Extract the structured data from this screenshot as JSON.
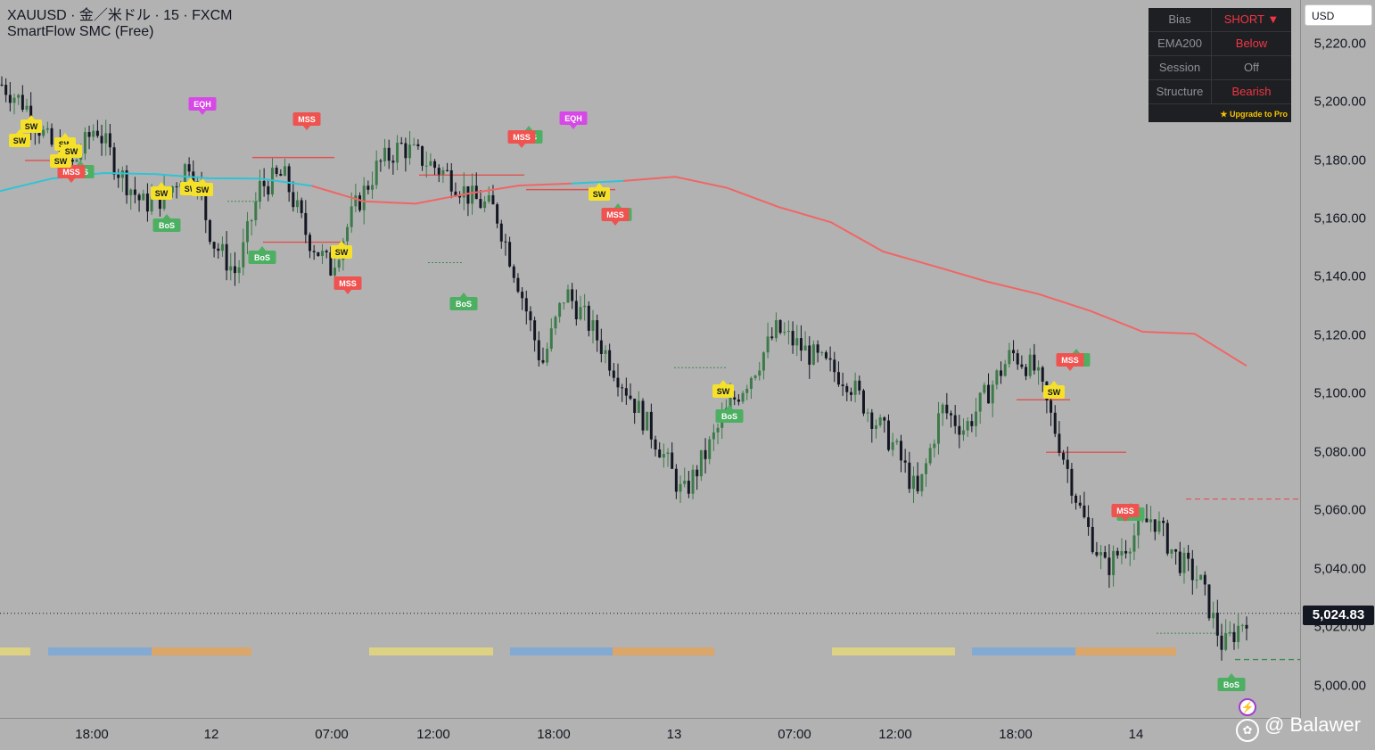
{
  "legend": {
    "symbol_line": "XAUUSD · 金／米ドル · 15 · FXCM",
    "indicator_line": "SmartFlow SMC (Free)"
  },
  "price_axis": {
    "currency": "USD",
    "ticks": [
      "5,220.00",
      "5,200.00",
      "5,180.00",
      "5,160.00",
      "5,140.00",
      "5,120.00",
      "5,100.00",
      "5,080.00",
      "5,060.00",
      "5,040.00",
      "5,020.00",
      "5,000.00"
    ],
    "last_price": "5,024.83"
  },
  "time_axis": {
    "ticks": [
      "18:00",
      "12",
      "07:00",
      "12:00",
      "18:00",
      "13",
      "07:00",
      "12:00",
      "18:00",
      "14"
    ]
  },
  "dashboard": {
    "rows": [
      {
        "key": "Bias",
        "value": "SHORT ▼",
        "color": "#f23645"
      },
      {
        "key": "EMA200",
        "value": "Below",
        "color": "#f23645"
      },
      {
        "key": "Session",
        "value": "Off",
        "color": "#8e9199"
      },
      {
        "key": "Structure",
        "value": "Bearish",
        "color": "#f23645"
      }
    ],
    "footer": "★ Upgrade to Pro"
  },
  "labels": {
    "bos": "BoS",
    "mss": "MSS",
    "eqh": "EQH",
    "sw": "SW"
  },
  "colors": {
    "background": "#b2b2b2",
    "bull_candle": "#3d7a4a",
    "bear_candle": "#131722",
    "ema_above": "#2ec4d6",
    "ema_below": "#f16565",
    "bos": "#4caf62",
    "mss": "#ef5350",
    "eqh": "#d649e6",
    "sw": "#f5e12a",
    "session_asia": "#e4d67a",
    "session_london": "#7aa8d8",
    "session_ny": "#e1a35c"
  },
  "watermark": {
    "text": "@ Balawer"
  },
  "chart_data": {
    "type": "candlestick",
    "ylim": [
      4990,
      5230
    ],
    "y_ticks": [
      5000,
      5020,
      5040,
      5060,
      5080,
      5100,
      5120,
      5140,
      5160,
      5180,
      5200,
      5220
    ],
    "last_price": 5024.83,
    "ema200": [
      5169.5,
      5173.8,
      5175.7,
      5175.3,
      5173.9,
      5173.8,
      5171.3,
      5166.0,
      5165.2,
      5168.6,
      5171.4,
      5172.1,
      5173.0,
      5174.4,
      5170.6,
      5164.0,
      5158.8,
      5148.8,
      5143.7,
      5138.5,
      5134.2,
      5128.4,
      5121.3,
      5120.6,
      5109.6
    ],
    "candles_summary": "intraday 15m candles, approximate path",
    "path": [
      5206,
      5199,
      5186,
      5178,
      5192,
      5176,
      5165,
      5168,
      5180,
      5152,
      5141,
      5171,
      5175,
      5154,
      5143,
      5163,
      5178,
      5185,
      5180,
      5175,
      5167,
      5163,
      5138,
      5110,
      5135,
      5124,
      5110,
      5096,
      5082,
      5065,
      5080,
      5096,
      5108,
      5122,
      5116,
      5110,
      5105,
      5093,
      5082,
      5065,
      5095,
      5088,
      5101,
      5114,
      5108,
      5084,
      5058,
      5040,
      5050,
      5058,
      5044,
      5036,
      5013,
      5024
    ]
  }
}
